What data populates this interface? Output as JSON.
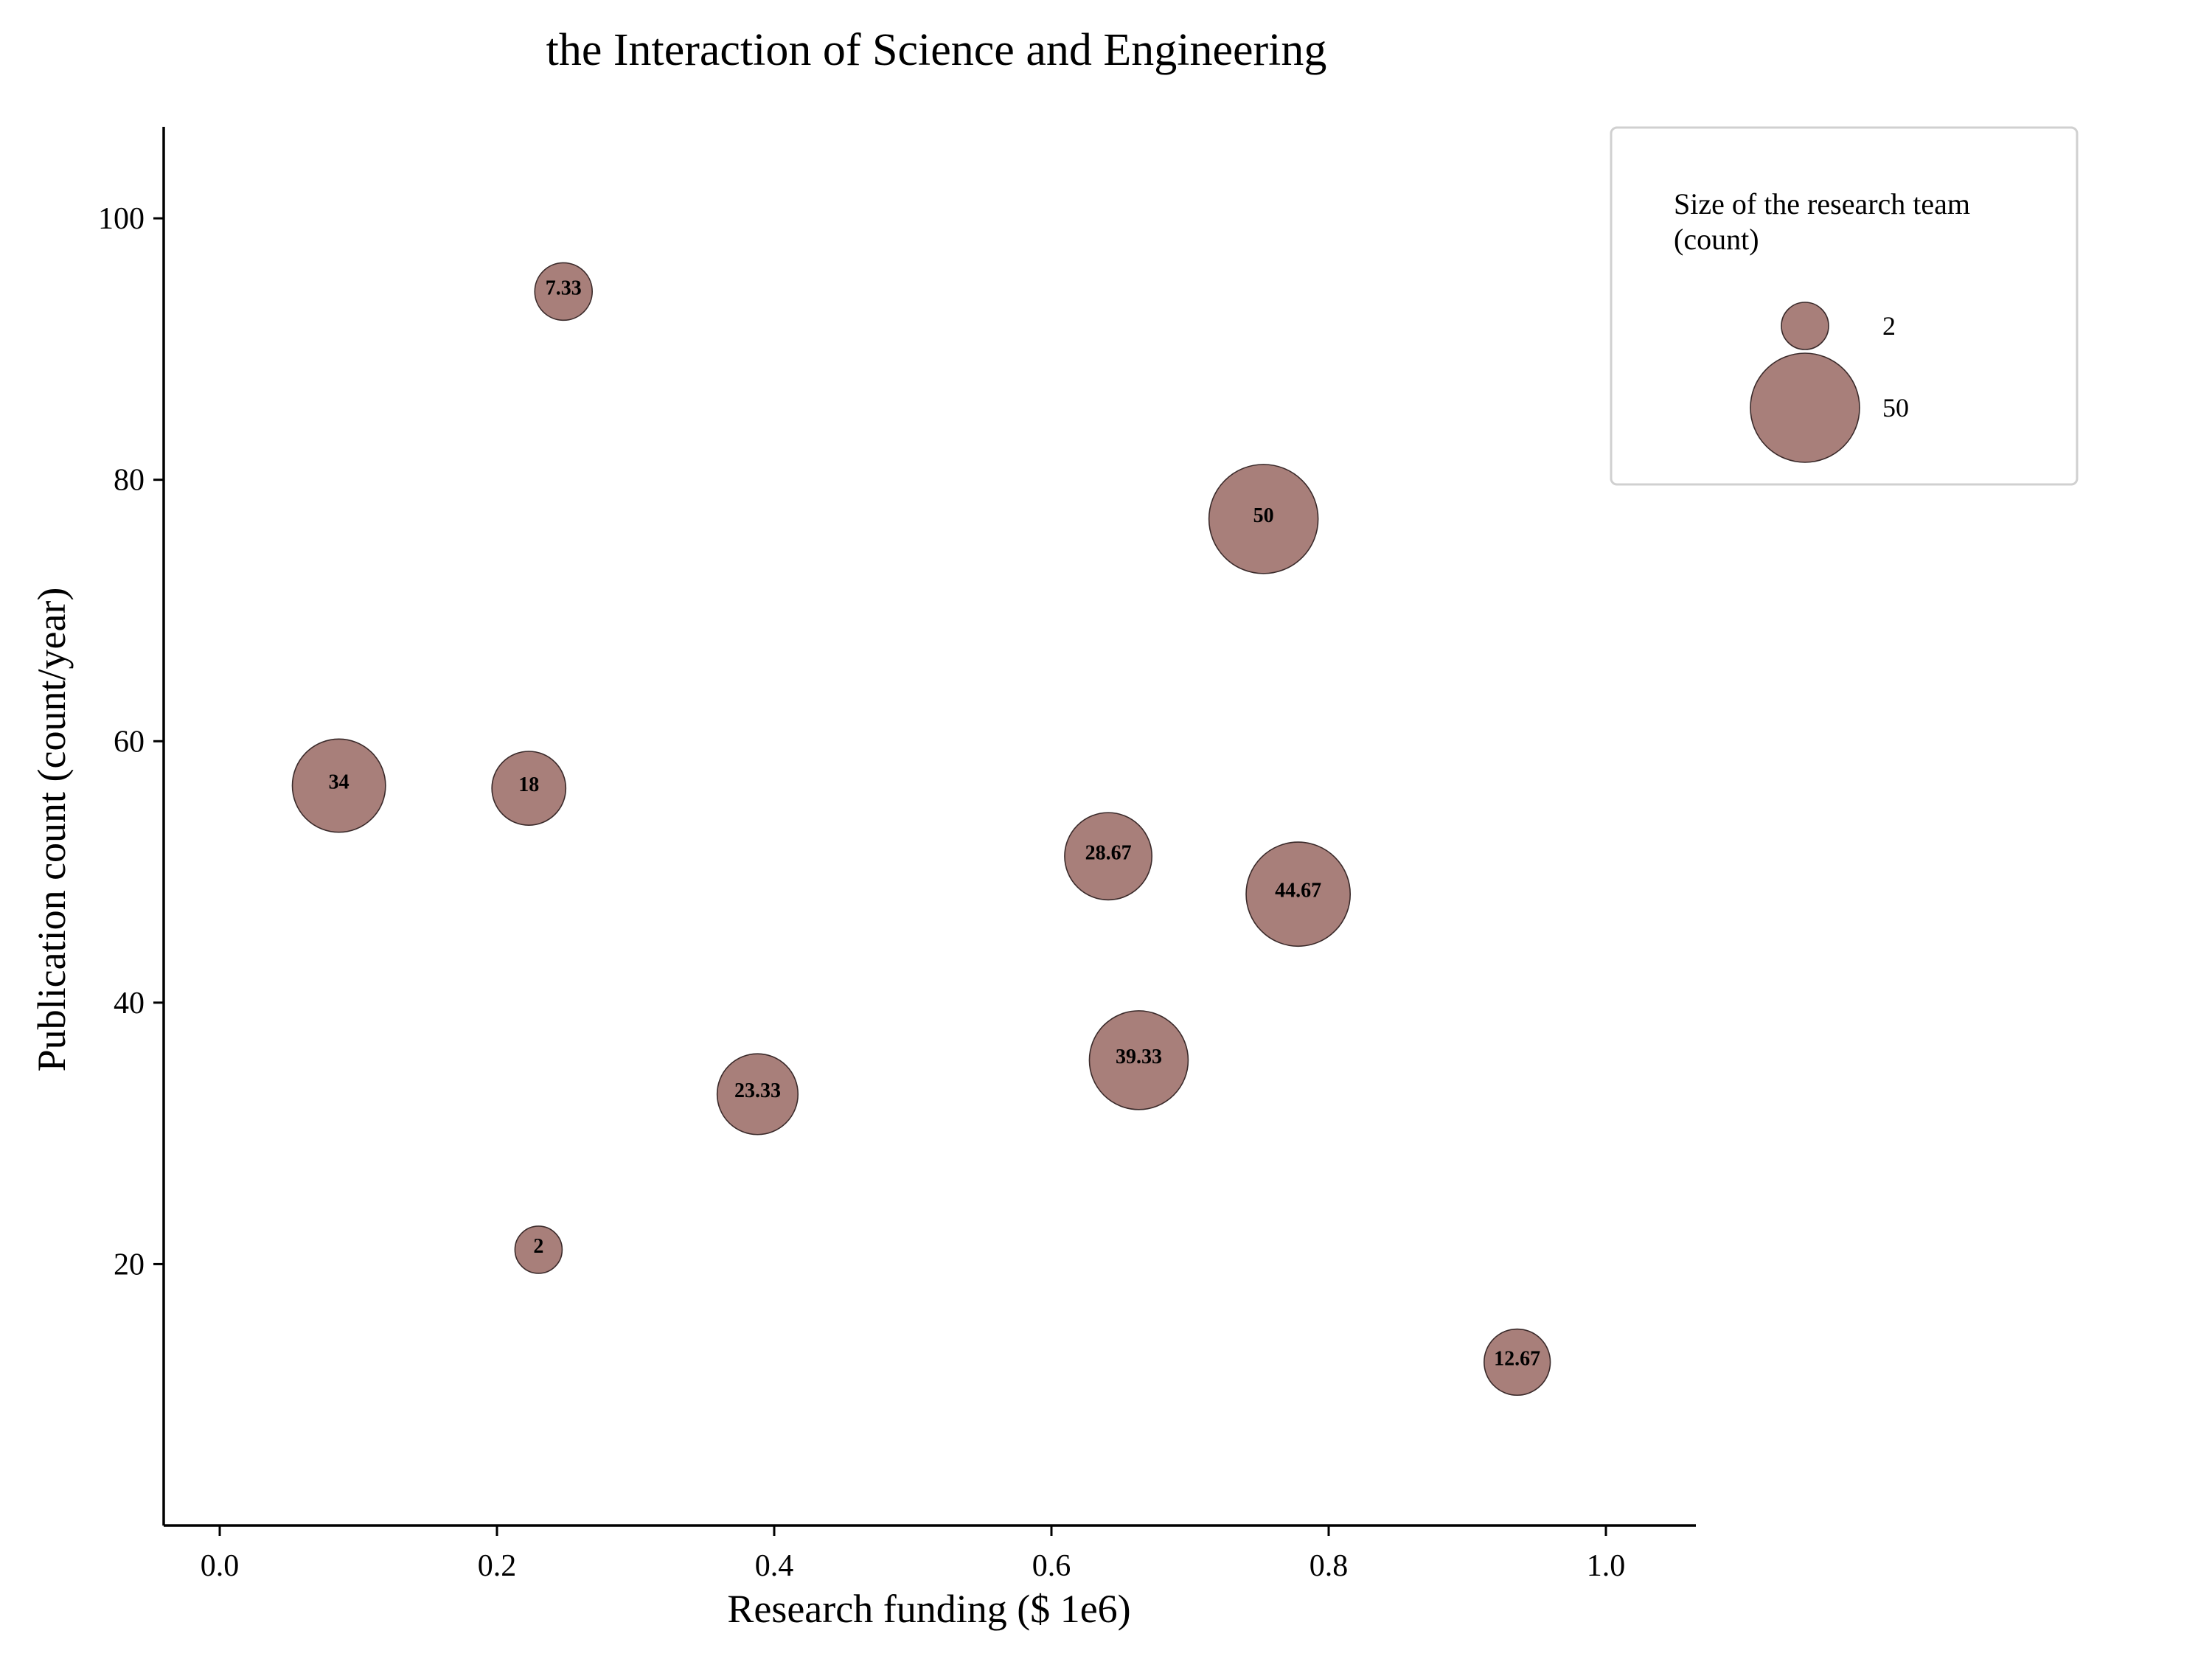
{
  "chart_data": {
    "type": "scatter",
    "title": "the Interaction of Science and Engineering",
    "xlabel": "Research funding ($ 1e6)",
    "ylabel": "Publication count (count/year)",
    "xlim": [
      -0.04,
      1.06
    ],
    "ylim": [
      0,
      107
    ],
    "x_ticks": [
      0.0,
      0.2,
      0.4,
      0.6,
      0.8,
      1.0
    ],
    "x_tick_labels": [
      "0.0",
      "0.2",
      "0.4",
      "0.6",
      "0.8",
      "1.0"
    ],
    "y_ticks": [
      20,
      40,
      60,
      80,
      100
    ],
    "y_tick_labels": [
      "20",
      "40",
      "60",
      "80",
      "100"
    ],
    "grid": false,
    "bubble_color": "#a87f7a",
    "bubble_edge": "#3a2a2a",
    "points": [
      {
        "x": 0.248,
        "y": 94.4,
        "size": 7.33,
        "label": "7.33"
      },
      {
        "x": 0.753,
        "y": 77.0,
        "size": 50,
        "label": "50"
      },
      {
        "x": 0.086,
        "y": 56.6,
        "size": 34,
        "label": "34"
      },
      {
        "x": 0.223,
        "y": 56.4,
        "size": 18,
        "label": "18"
      },
      {
        "x": 0.641,
        "y": 51.2,
        "size": 28.67,
        "label": "28.67"
      },
      {
        "x": 0.778,
        "y": 48.3,
        "size": 44.67,
        "label": "44.67"
      },
      {
        "x": 0.663,
        "y": 35.6,
        "size": 39.33,
        "label": "39.33"
      },
      {
        "x": 0.388,
        "y": 33.0,
        "size": 23.33,
        "label": "23.33"
      },
      {
        "x": 0.23,
        "y": 21.1,
        "size": 2,
        "label": "2"
      },
      {
        "x": 0.936,
        "y": 12.5,
        "size": 12.67,
        "label": "12.67"
      }
    ],
    "legend": {
      "title": "Size of the research team (count)",
      "title_lines": [
        "Size of the research team",
        "(count)"
      ],
      "placement": "top-right",
      "entries": [
        {
          "size": 2,
          "label": "2"
        },
        {
          "size": 50,
          "label": "50"
        }
      ]
    }
  }
}
